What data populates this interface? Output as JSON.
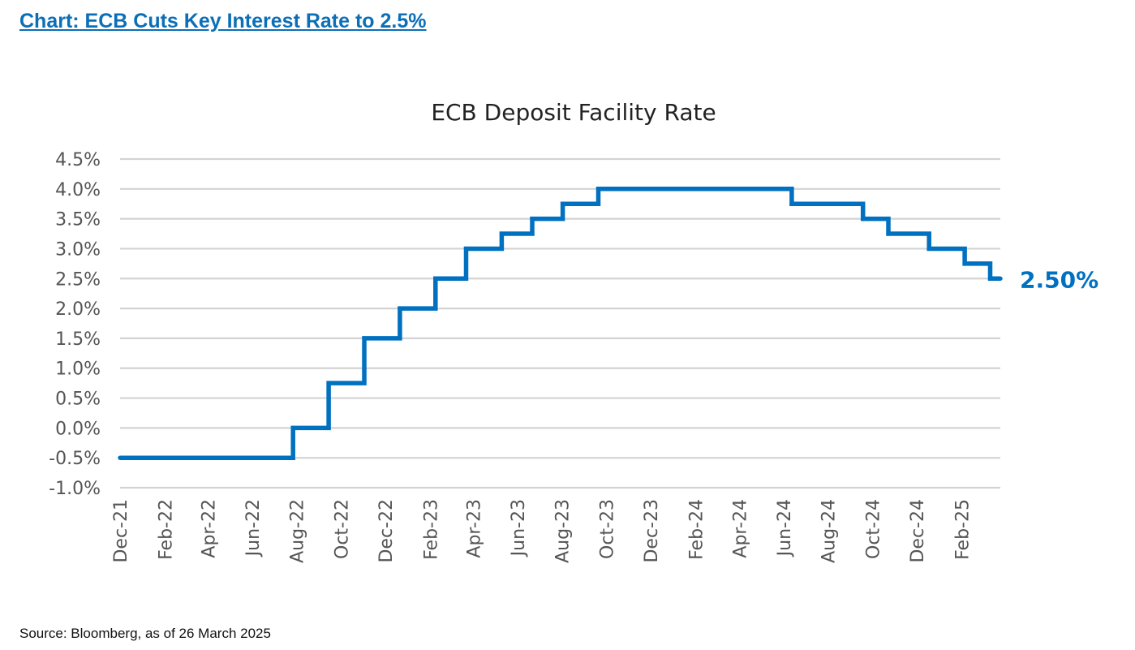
{
  "page": {
    "heading": "Chart: ECB Cuts Key Interest Rate to 2.5%",
    "source": "Source: Bloomberg, as of 26 March 2025"
  },
  "chart_data": {
    "type": "line",
    "title": "ECB Deposit Facility Rate",
    "xlabel": "",
    "ylabel": "",
    "step": true,
    "grid": true,
    "line_color": "#0070c0",
    "grid_color": "#d3d3d3",
    "ylim": [
      -1.0,
      4.5
    ],
    "yticks": [
      -1.0,
      -0.5,
      0.0,
      0.5,
      1.0,
      1.5,
      2.0,
      2.5,
      3.0,
      3.5,
      4.0,
      4.5
    ],
    "ytick_labels": [
      "-1.0%",
      "-0.5%",
      "0.0%",
      "0.5%",
      "1.0%",
      "1.5%",
      "2.0%",
      "2.5%",
      "3.0%",
      "3.5%",
      "4.0%",
      "4.5%"
    ],
    "xlim": [
      "2021-12-01",
      "2025-03-26"
    ],
    "xticks": [
      "2021-12-01",
      "2022-02-01",
      "2022-04-01",
      "2022-06-01",
      "2022-08-01",
      "2022-10-01",
      "2022-12-01",
      "2023-02-01",
      "2023-04-01",
      "2023-06-01",
      "2023-08-01",
      "2023-10-01",
      "2023-12-01",
      "2024-02-01",
      "2024-04-01",
      "2024-06-01",
      "2024-08-01",
      "2024-10-01",
      "2024-12-01",
      "2025-02-01"
    ],
    "xtick_labels": [
      "Dec-21",
      "Feb-22",
      "Apr-22",
      "Jun-22",
      "Aug-22",
      "Oct-22",
      "Dec-22",
      "Feb-23",
      "Apr-23",
      "Jun-23",
      "Aug-23",
      "Oct-23",
      "Dec-23",
      "Feb-24",
      "Apr-24",
      "Jun-24",
      "Aug-24",
      "Oct-24",
      "Dec-24",
      "Feb-25"
    ],
    "series": [
      {
        "x": [
          "2021-12-01",
          "2022-07-27",
          "2022-09-14",
          "2022-11-02",
          "2022-12-21",
          "2023-02-08",
          "2023-03-22",
          "2023-05-10",
          "2023-06-21",
          "2023-08-02",
          "2023-09-20",
          "2024-06-12",
          "2024-09-18",
          "2024-10-23",
          "2024-12-18",
          "2025-02-05",
          "2025-03-12",
          "2025-03-26"
        ],
        "values": [
          -0.5,
          0.0,
          0.75,
          1.5,
          2.0,
          2.5,
          3.0,
          3.25,
          3.5,
          3.75,
          4.0,
          3.75,
          3.5,
          3.25,
          3.0,
          2.75,
          2.5,
          2.5
        ]
      }
    ],
    "annotations": [
      {
        "text": "2.50%",
        "x": "2025-03-26",
        "y": 2.5,
        "color": "#0070c0"
      }
    ]
  }
}
